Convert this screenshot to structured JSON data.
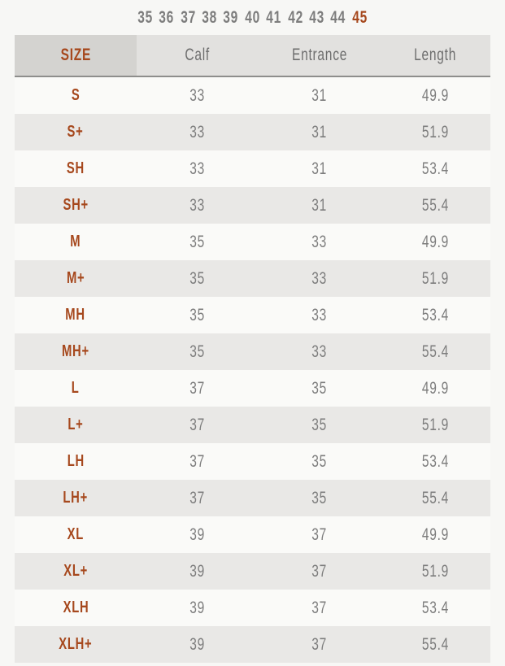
{
  "colors": {
    "accent": "#a6481d",
    "page_bg": "#f7f7f5",
    "header_bg": "#e2e1df",
    "header_size_bg": "#d4d3d0",
    "row_bg": "#fafaf8",
    "row_alt_bg": "#e9e8e6",
    "text_gray": "#7d7d7d",
    "header_text": "#6e6e6e",
    "header_border": "#8e8e8c"
  },
  "size_selector": {
    "options": [
      "35",
      "36",
      "37",
      "38",
      "39",
      "40",
      "41",
      "42",
      "43",
      "44",
      "45"
    ],
    "selected": "45"
  },
  "table": {
    "headers": [
      "SIZE",
      "Calf",
      "Entrance",
      "Length"
    ],
    "rows": [
      [
        "S",
        "33",
        "31",
        "49.9"
      ],
      [
        "S+",
        "33",
        "31",
        "51.9"
      ],
      [
        "SH",
        "33",
        "31",
        "53.4"
      ],
      [
        "SH+",
        "33",
        "31",
        "55.4"
      ],
      [
        "M",
        "35",
        "33",
        "49.9"
      ],
      [
        "M+",
        "35",
        "33",
        "51.9"
      ],
      [
        "MH",
        "35",
        "33",
        "53.4"
      ],
      [
        "MH+",
        "35",
        "33",
        "55.4"
      ],
      [
        "L",
        "37",
        "35",
        "49.9"
      ],
      [
        "L+",
        "37",
        "35",
        "51.9"
      ],
      [
        "LH",
        "37",
        "35",
        "53.4"
      ],
      [
        "LH+",
        "37",
        "35",
        "55.4"
      ],
      [
        "XL",
        "39",
        "37",
        "49.9"
      ],
      [
        "XL+",
        "39",
        "37",
        "51.9"
      ],
      [
        "XLH",
        "39",
        "37",
        "53.4"
      ],
      [
        "XLH+",
        "39",
        "37",
        "55.4"
      ]
    ]
  }
}
